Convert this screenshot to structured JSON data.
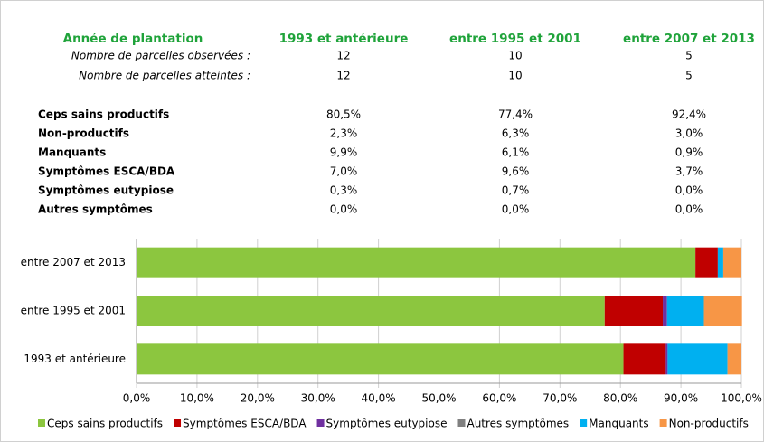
{
  "table": {
    "header": [
      "Année de plantation",
      "1993 et antérieure",
      "entre 1995 et 2001",
      "entre 2007 et 2013"
    ],
    "counts": [
      [
        "Nombre de parcelles observées :",
        "12",
        "10",
        "5"
      ],
      [
        "Nombre de parcelles atteintes :",
        "12",
        "10",
        "5"
      ]
    ],
    "rows": [
      [
        "Ceps sains productifs",
        "80,5%",
        "77,4%",
        "92,4%"
      ],
      [
        "Non-productifs",
        "2,3%",
        "6,3%",
        "3,0%"
      ],
      [
        "Manquants",
        "9,9%",
        "6,1%",
        "0,9%"
      ],
      [
        "Symptômes ESCA/BDA",
        "7,0%",
        "9,6%",
        "3,7%"
      ],
      [
        "Symptômes eutypiose",
        "0,3%",
        "0,7%",
        "0,0%"
      ],
      [
        "Autres symptômes",
        "0,0%",
        "0,0%",
        "0,0%"
      ]
    ]
  },
  "chart_data": {
    "type": "stacked_barh",
    "categories": [
      "entre 2007 et 2013",
      "entre 1995 et 2001",
      "1993 et antérieure"
    ],
    "series": [
      {
        "name": "Ceps sains productifs",
        "color": "#8cc63f",
        "values": [
          92.4,
          77.4,
          80.5
        ]
      },
      {
        "name": "Symptômes ESCA/BDA",
        "color": "#c00000",
        "values": [
          3.7,
          9.6,
          7.0
        ]
      },
      {
        "name": "Symptômes eutypiose",
        "color": "#7030a0",
        "values": [
          0.0,
          0.7,
          0.3
        ]
      },
      {
        "name": "Autres symptômes",
        "color": "#808080",
        "values": [
          0.0,
          0.0,
          0.0
        ]
      },
      {
        "name": "Manquants",
        "color": "#00b0f0",
        "values": [
          0.9,
          6.1,
          9.9
        ]
      },
      {
        "name": "Non-productifs",
        "color": "#f79646",
        "values": [
          3.0,
          6.3,
          2.3
        ]
      }
    ],
    "xlim": [
      0,
      100
    ],
    "xticks": [
      {
        "value": 0,
        "label": "0,0%"
      },
      {
        "value": 10,
        "label": "10,0%"
      },
      {
        "value": 20,
        "label": "20,0%"
      },
      {
        "value": 30,
        "label": "30,0%"
      },
      {
        "value": 40,
        "label": "40,0%"
      },
      {
        "value": 50,
        "label": "50,0%"
      },
      {
        "value": 60,
        "label": "60,0%"
      },
      {
        "value": 70,
        "label": "70,0%"
      },
      {
        "value": 80,
        "label": "80,0%"
      },
      {
        "value": 90,
        "label": "90,0%"
      },
      {
        "value": 100,
        "label": "100,0%"
      }
    ],
    "grid": true,
    "legend": "bottom"
  }
}
